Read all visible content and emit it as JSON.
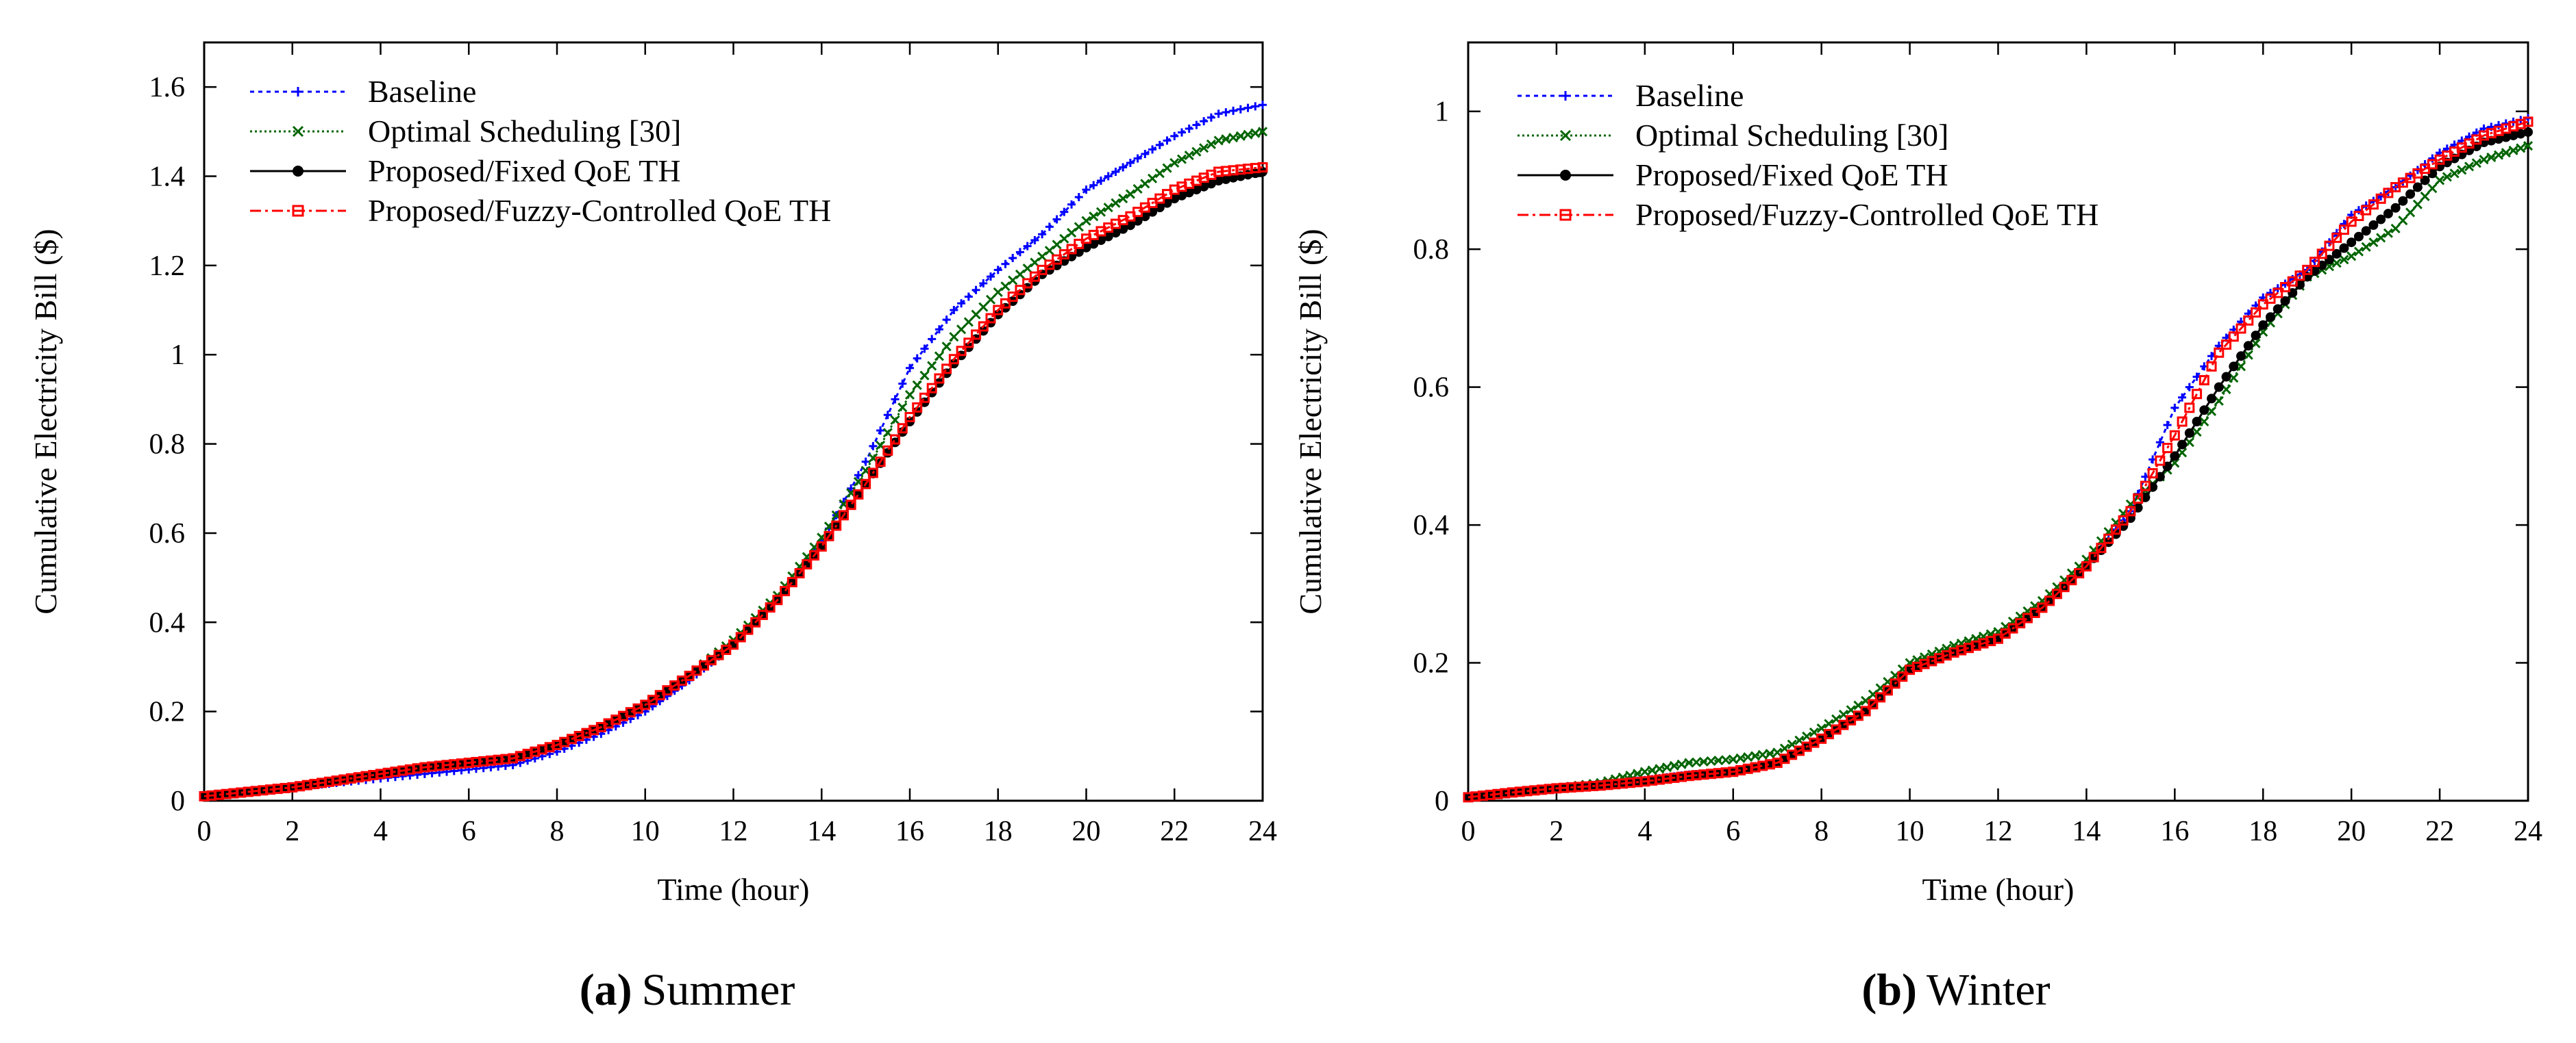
{
  "chart_data": [
    {
      "type": "line",
      "panel_letter": "(a)",
      "caption_text": "Summer",
      "xlabel": "Time (hour)",
      "ylabel": "Cumulative Electricity Bill ($)",
      "xlim": [
        0,
        24
      ],
      "ylim": [
        0,
        1.7
      ],
      "xticks": [
        0,
        2,
        4,
        6,
        8,
        10,
        12,
        14,
        16,
        18,
        20,
        22,
        24
      ],
      "xtick_labels": [
        "0",
        "2",
        "4",
        "6",
        "8",
        "10",
        "12",
        "14",
        "16",
        "18",
        "20",
        "22",
        "24"
      ],
      "yticks": [
        0,
        0.2,
        0.4,
        0.6,
        0.8,
        1.0,
        1.2,
        1.4,
        1.6
      ],
      "ytick_labels": [
        "0",
        "0.2",
        "0.4",
        "0.6",
        "0.8",
        "1",
        "1.2",
        "1.4",
        "1.6"
      ],
      "legend_position": "top-left",
      "x": [
        0,
        1,
        2,
        3,
        4,
        5,
        6,
        7,
        8,
        9,
        10,
        11,
        12,
        13,
        14,
        15,
        16,
        17,
        18,
        19,
        20,
        21,
        22,
        23,
        24
      ],
      "series": [
        {
          "name": "Baseline",
          "color": "#0000ff",
          "dash": "dotted",
          "marker": "plus",
          "values": [
            0.01,
            0.02,
            0.03,
            0.04,
            0.05,
            0.06,
            0.07,
            0.08,
            0.11,
            0.15,
            0.2,
            0.27,
            0.35,
            0.45,
            0.58,
            0.76,
            0.97,
            1.1,
            1.19,
            1.27,
            1.37,
            1.43,
            1.49,
            1.54,
            1.56
          ]
        },
        {
          "name": "Optimal Scheduling [30]",
          "color": "#006400",
          "dash": "dotted-fine",
          "marker": "cross",
          "values": [
            0.01,
            0.02,
            0.03,
            0.045,
            0.06,
            0.075,
            0.085,
            0.095,
            0.125,
            0.165,
            0.215,
            0.28,
            0.36,
            0.46,
            0.59,
            0.74,
            0.91,
            1.04,
            1.14,
            1.22,
            1.3,
            1.36,
            1.43,
            1.48,
            1.5
          ]
        },
        {
          "name": "Proposed/Fixed QoE TH",
          "color": "#000000",
          "dash": "solid",
          "marker": "circle",
          "values": [
            0.01,
            0.02,
            0.03,
            0.045,
            0.06,
            0.075,
            0.085,
            0.095,
            0.125,
            0.165,
            0.215,
            0.28,
            0.35,
            0.45,
            0.57,
            0.71,
            0.85,
            0.98,
            1.09,
            1.18,
            1.24,
            1.29,
            1.35,
            1.39,
            1.41
          ]
        },
        {
          "name": "Proposed/Fuzzy-Controlled QoE TH",
          "color": "#ff0000",
          "dash": "dashdot",
          "marker": "square",
          "values": [
            0.01,
            0.02,
            0.03,
            0.045,
            0.06,
            0.075,
            0.085,
            0.095,
            0.125,
            0.165,
            0.215,
            0.28,
            0.35,
            0.45,
            0.57,
            0.71,
            0.86,
            0.99,
            1.1,
            1.19,
            1.26,
            1.31,
            1.37,
            1.41,
            1.42
          ]
        }
      ]
    },
    {
      "type": "line",
      "panel_letter": "(b)",
      "caption_text": "Winter",
      "xlabel": "Time (hour)",
      "ylabel": "Cumulative Electricity Bill ($)",
      "xlim": [
        0,
        24
      ],
      "ylim": [
        0,
        1.1
      ],
      "xticks": [
        0,
        2,
        4,
        6,
        8,
        10,
        12,
        14,
        16,
        18,
        20,
        22,
        24
      ],
      "xtick_labels": [
        "0",
        "2",
        "4",
        "6",
        "8",
        "10",
        "12",
        "14",
        "16",
        "18",
        "20",
        "22",
        "24"
      ],
      "yticks": [
        0,
        0.2,
        0.4,
        0.6,
        0.8,
        1.0
      ],
      "ytick_labels": [
        "0",
        "0.2",
        "0.4",
        "0.6",
        "0.8",
        "1"
      ],
      "legend_position": "top-left",
      "x": [
        0,
        1,
        2,
        3,
        4,
        5,
        6,
        7,
        8,
        9,
        10,
        11,
        12,
        13,
        14,
        15,
        16,
        17,
        18,
        19,
        20,
        21,
        22,
        23,
        24
      ],
      "series": [
        {
          "name": "Baseline",
          "color": "#0000ff",
          "dash": "dotted",
          "marker": "plus",
          "values": [
            0.005,
            0.012,
            0.018,
            0.024,
            0.03,
            0.038,
            0.042,
            0.055,
            0.09,
            0.13,
            0.19,
            0.215,
            0.235,
            0.28,
            0.34,
            0.42,
            0.57,
            0.66,
            0.73,
            0.77,
            0.85,
            0.89,
            0.94,
            0.975,
            0.99
          ]
        },
        {
          "name": "Optimal Scheduling [30]",
          "color": "#006400",
          "dash": "dotted-fine",
          "marker": "cross",
          "values": [
            0.005,
            0.012,
            0.018,
            0.026,
            0.042,
            0.055,
            0.06,
            0.07,
            0.105,
            0.145,
            0.2,
            0.225,
            0.245,
            0.29,
            0.35,
            0.43,
            0.49,
            0.58,
            0.68,
            0.76,
            0.79,
            0.83,
            0.9,
            0.93,
            0.95
          ]
        },
        {
          "name": "Proposed/Fixed QoE TH",
          "color": "#000000",
          "dash": "solid",
          "marker": "circle",
          "values": [
            0.005,
            0.012,
            0.018,
            0.022,
            0.028,
            0.036,
            0.042,
            0.055,
            0.09,
            0.13,
            0.19,
            0.215,
            0.235,
            0.28,
            0.34,
            0.41,
            0.5,
            0.6,
            0.69,
            0.76,
            0.81,
            0.86,
            0.92,
            0.955,
            0.97
          ]
        },
        {
          "name": "Proposed/Fuzzy-Controlled QoE TH",
          "color": "#ff0000",
          "dash": "dashdot",
          "marker": "square",
          "values": [
            0.005,
            0.012,
            0.018,
            0.022,
            0.028,
            0.036,
            0.042,
            0.055,
            0.09,
            0.13,
            0.19,
            0.215,
            0.235,
            0.28,
            0.34,
            0.42,
            0.53,
            0.65,
            0.72,
            0.77,
            0.84,
            0.89,
            0.93,
            0.965,
            0.985
          ]
        }
      ]
    }
  ]
}
